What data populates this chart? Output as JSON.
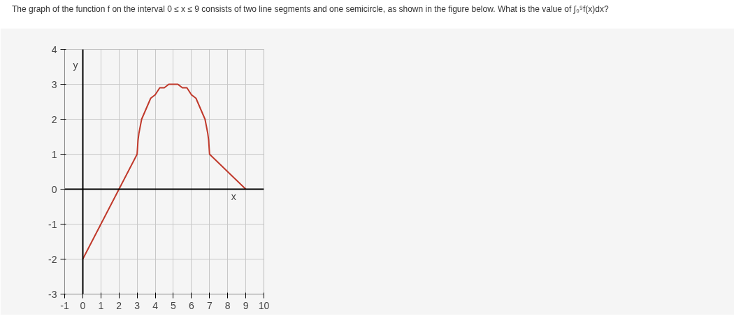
{
  "chart_data": {
    "type": "line",
    "title": "The graph of the function f on the interval 0 ≤ x ≤ 9 consists of two line segments and one semicircle, as shown in the figure below. What is the value of ∫₀⁹f(x)dx?",
    "xlabel": "x",
    "ylabel": "y",
    "series": [
      {
        "color": "#c0392b",
        "x": [
          0,
          2,
          3,
          3.05,
          3.1,
          3.25,
          3.5,
          3.75,
          4,
          4.25,
          4.5,
          4.75,
          5,
          5.25,
          5.5,
          5.75,
          6,
          6.25,
          6.5,
          6.75,
          6.9,
          6.95,
          7,
          9
        ],
        "values": [
          -2,
          0,
          1,
          1.4,
          1.6,
          2.0,
          2.3,
          2.6,
          2.7,
          2.9,
          2.9,
          3.0,
          3,
          3.0,
          2.9,
          2.9,
          2.7,
          2.6,
          2.3,
          2.0,
          1.6,
          1.4,
          1,
          0
        ]
      }
    ],
    "xlim": [
      -1,
      10
    ],
    "ylim": [
      -3,
      4
    ],
    "xticks": [
      -1,
      0,
      1,
      2,
      3,
      4,
      5,
      6,
      7,
      8,
      9,
      10
    ],
    "yticks": [
      -3,
      -2,
      -1,
      0,
      1,
      2,
      3,
      4
    ],
    "grid": true
  }
}
